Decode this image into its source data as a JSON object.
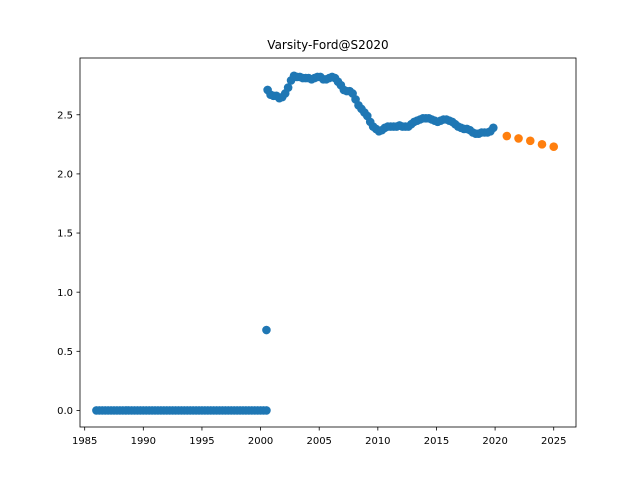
{
  "chart_data": {
    "type": "scatter",
    "title": "Varsity-Ford@S2020",
    "xlabel": "",
    "ylabel": "",
    "xlim": [
      1984.6,
      2026.9
    ],
    "ylim": [
      -0.14,
      2.98
    ],
    "grid": false,
    "x_ticks": [
      "1985",
      "1990",
      "1995",
      "2000",
      "2005",
      "2010",
      "2015",
      "2020",
      "2025"
    ],
    "y_ticks": [
      "0.0",
      "0.5",
      "1.0",
      "1.5",
      "2.0",
      "2.5"
    ],
    "series": [
      {
        "color": "#1f77b4",
        "points": [
          [
            1986.0,
            0.0
          ],
          [
            1986.25,
            0.0
          ],
          [
            1986.5,
            0.0
          ],
          [
            1986.75,
            0.0
          ],
          [
            1987.0,
            0.0
          ],
          [
            1987.25,
            0.0
          ],
          [
            1987.5,
            0.0
          ],
          [
            1987.75,
            0.0
          ],
          [
            1988.0,
            0.0
          ],
          [
            1988.25,
            0.0
          ],
          [
            1988.5,
            0.0
          ],
          [
            1988.75,
            0.0
          ],
          [
            1989.0,
            0.0
          ],
          [
            1989.25,
            0.0
          ],
          [
            1989.5,
            0.0
          ],
          [
            1989.75,
            0.0
          ],
          [
            1990.0,
            0.0
          ],
          [
            1990.25,
            0.0
          ],
          [
            1990.5,
            0.0
          ],
          [
            1990.75,
            0.0
          ],
          [
            1991.0,
            0.0
          ],
          [
            1991.25,
            0.0
          ],
          [
            1991.5,
            0.0
          ],
          [
            1991.75,
            0.0
          ],
          [
            1992.0,
            0.0
          ],
          [
            1992.25,
            0.0
          ],
          [
            1992.5,
            0.0
          ],
          [
            1992.75,
            0.0
          ],
          [
            1993.0,
            0.0
          ],
          [
            1993.25,
            0.0
          ],
          [
            1993.5,
            0.0
          ],
          [
            1993.75,
            0.0
          ],
          [
            1994.0,
            0.0
          ],
          [
            1994.25,
            0.0
          ],
          [
            1994.5,
            0.0
          ],
          [
            1994.75,
            0.0
          ],
          [
            1995.0,
            0.0
          ],
          [
            1995.25,
            0.0
          ],
          [
            1995.5,
            0.0
          ],
          [
            1995.75,
            0.0
          ],
          [
            1996.0,
            0.0
          ],
          [
            1996.25,
            0.0
          ],
          [
            1996.5,
            0.0
          ],
          [
            1996.75,
            0.0
          ],
          [
            1997.0,
            0.0
          ],
          [
            1997.25,
            0.0
          ],
          [
            1997.5,
            0.0
          ],
          [
            1997.75,
            0.0
          ],
          [
            1998.0,
            0.0
          ],
          [
            1998.25,
            0.0
          ],
          [
            1998.5,
            0.0
          ],
          [
            1998.75,
            0.0
          ],
          [
            1999.0,
            0.0
          ],
          [
            1999.25,
            0.0
          ],
          [
            1999.5,
            0.0
          ],
          [
            1999.75,
            0.0
          ],
          [
            2000.0,
            0.0
          ],
          [
            2000.25,
            0.0
          ],
          [
            2000.5,
            0.0
          ],
          [
            2000.5,
            0.68
          ],
          [
            2000.6,
            2.71
          ],
          [
            2000.85,
            2.67
          ],
          [
            2001.1,
            2.66
          ],
          [
            2001.35,
            2.66
          ],
          [
            2001.6,
            2.64
          ],
          [
            2001.85,
            2.65
          ],
          [
            2002.1,
            2.68
          ],
          [
            2002.35,
            2.73
          ],
          [
            2002.6,
            2.79
          ],
          [
            2002.85,
            2.83
          ],
          [
            2003.1,
            2.82
          ],
          [
            2003.35,
            2.82
          ],
          [
            2003.6,
            2.81
          ],
          [
            2003.85,
            2.81
          ],
          [
            2004.1,
            2.81
          ],
          [
            2004.35,
            2.8
          ],
          [
            2004.6,
            2.81
          ],
          [
            2004.85,
            2.82
          ],
          [
            2005.1,
            2.82
          ],
          [
            2005.35,
            2.8
          ],
          [
            2005.6,
            2.8
          ],
          [
            2005.85,
            2.81
          ],
          [
            2006.1,
            2.82
          ],
          [
            2006.35,
            2.81
          ],
          [
            2006.6,
            2.78
          ],
          [
            2006.85,
            2.75
          ],
          [
            2007.1,
            2.71
          ],
          [
            2007.35,
            2.7
          ],
          [
            2007.6,
            2.7
          ],
          [
            2007.85,
            2.68
          ],
          [
            2008.1,
            2.63
          ],
          [
            2008.35,
            2.58
          ],
          [
            2008.6,
            2.55
          ],
          [
            2008.85,
            2.52
          ],
          [
            2009.1,
            2.49
          ],
          [
            2009.35,
            2.44
          ],
          [
            2009.6,
            2.4
          ],
          [
            2009.85,
            2.38
          ],
          [
            2010.1,
            2.36
          ],
          [
            2010.35,
            2.37
          ],
          [
            2010.6,
            2.39
          ],
          [
            2010.85,
            2.4
          ],
          [
            2011.1,
            2.4
          ],
          [
            2011.35,
            2.4
          ],
          [
            2011.6,
            2.4
          ],
          [
            2011.85,
            2.41
          ],
          [
            2012.1,
            2.4
          ],
          [
            2012.35,
            2.4
          ],
          [
            2012.6,
            2.4
          ],
          [
            2012.85,
            2.42
          ],
          [
            2013.1,
            2.44
          ],
          [
            2013.35,
            2.45
          ],
          [
            2013.6,
            2.46
          ],
          [
            2013.85,
            2.47
          ],
          [
            2014.1,
            2.47
          ],
          [
            2014.35,
            2.47
          ],
          [
            2014.6,
            2.46
          ],
          [
            2014.85,
            2.45
          ],
          [
            2015.1,
            2.44
          ],
          [
            2015.35,
            2.45
          ],
          [
            2015.6,
            2.46
          ],
          [
            2015.85,
            2.46
          ],
          [
            2016.1,
            2.45
          ],
          [
            2016.35,
            2.44
          ],
          [
            2016.6,
            2.42
          ],
          [
            2016.85,
            2.4
          ],
          [
            2017.1,
            2.39
          ],
          [
            2017.35,
            2.38
          ],
          [
            2017.6,
            2.38
          ],
          [
            2017.85,
            2.37
          ],
          [
            2018.1,
            2.35
          ],
          [
            2018.35,
            2.34
          ],
          [
            2018.6,
            2.34
          ],
          [
            2018.85,
            2.35
          ],
          [
            2019.1,
            2.35
          ],
          [
            2019.35,
            2.35
          ],
          [
            2019.6,
            2.36
          ],
          [
            2019.85,
            2.39
          ]
        ]
      },
      {
        "color": "#ff7f0e",
        "points": [
          [
            2021.0,
            2.32
          ],
          [
            2022.0,
            2.3
          ],
          [
            2023.0,
            2.28
          ],
          [
            2024.0,
            2.25
          ],
          [
            2025.0,
            2.23
          ]
        ]
      }
    ]
  }
}
